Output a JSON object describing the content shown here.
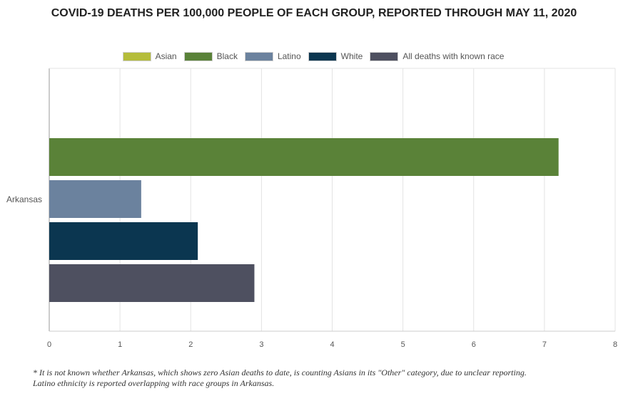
{
  "chart_data": {
    "type": "bar",
    "orientation": "horizontal",
    "title": "COVID-19 DEATHS PER 100,000 PEOPLE OF EACH GROUP, REPORTED THROUGH MAY 11, 2020",
    "categories": [
      "Arkansas"
    ],
    "series": [
      {
        "name": "Asian",
        "values": [
          0
        ],
        "color": "#b5bd3a"
      },
      {
        "name": "Black",
        "values": [
          7.2
        ],
        "color": "#5a8238"
      },
      {
        "name": "Latino",
        "values": [
          1.3
        ],
        "color": "#6b829e"
      },
      {
        "name": "White",
        "values": [
          2.1
        ],
        "color": "#0b3650"
      },
      {
        "name": "All deaths with known race",
        "values": [
          2.9
        ],
        "color": "#4e5060"
      }
    ],
    "x_ticks": [
      "0",
      "1",
      "2",
      "3",
      "4",
      "5",
      "6",
      "7",
      "8"
    ],
    "xlim": [
      0,
      8
    ],
    "grid": true,
    "legend_position": "top-center",
    "footnote": [
      "* It is not known whether Arkansas, which shows zero Asian deaths to date, is counting Asians in its \"Other\" category, due to unclear reporting.",
      "Latino ethnicity is reported overlapping with race groups in Arkansas."
    ]
  }
}
